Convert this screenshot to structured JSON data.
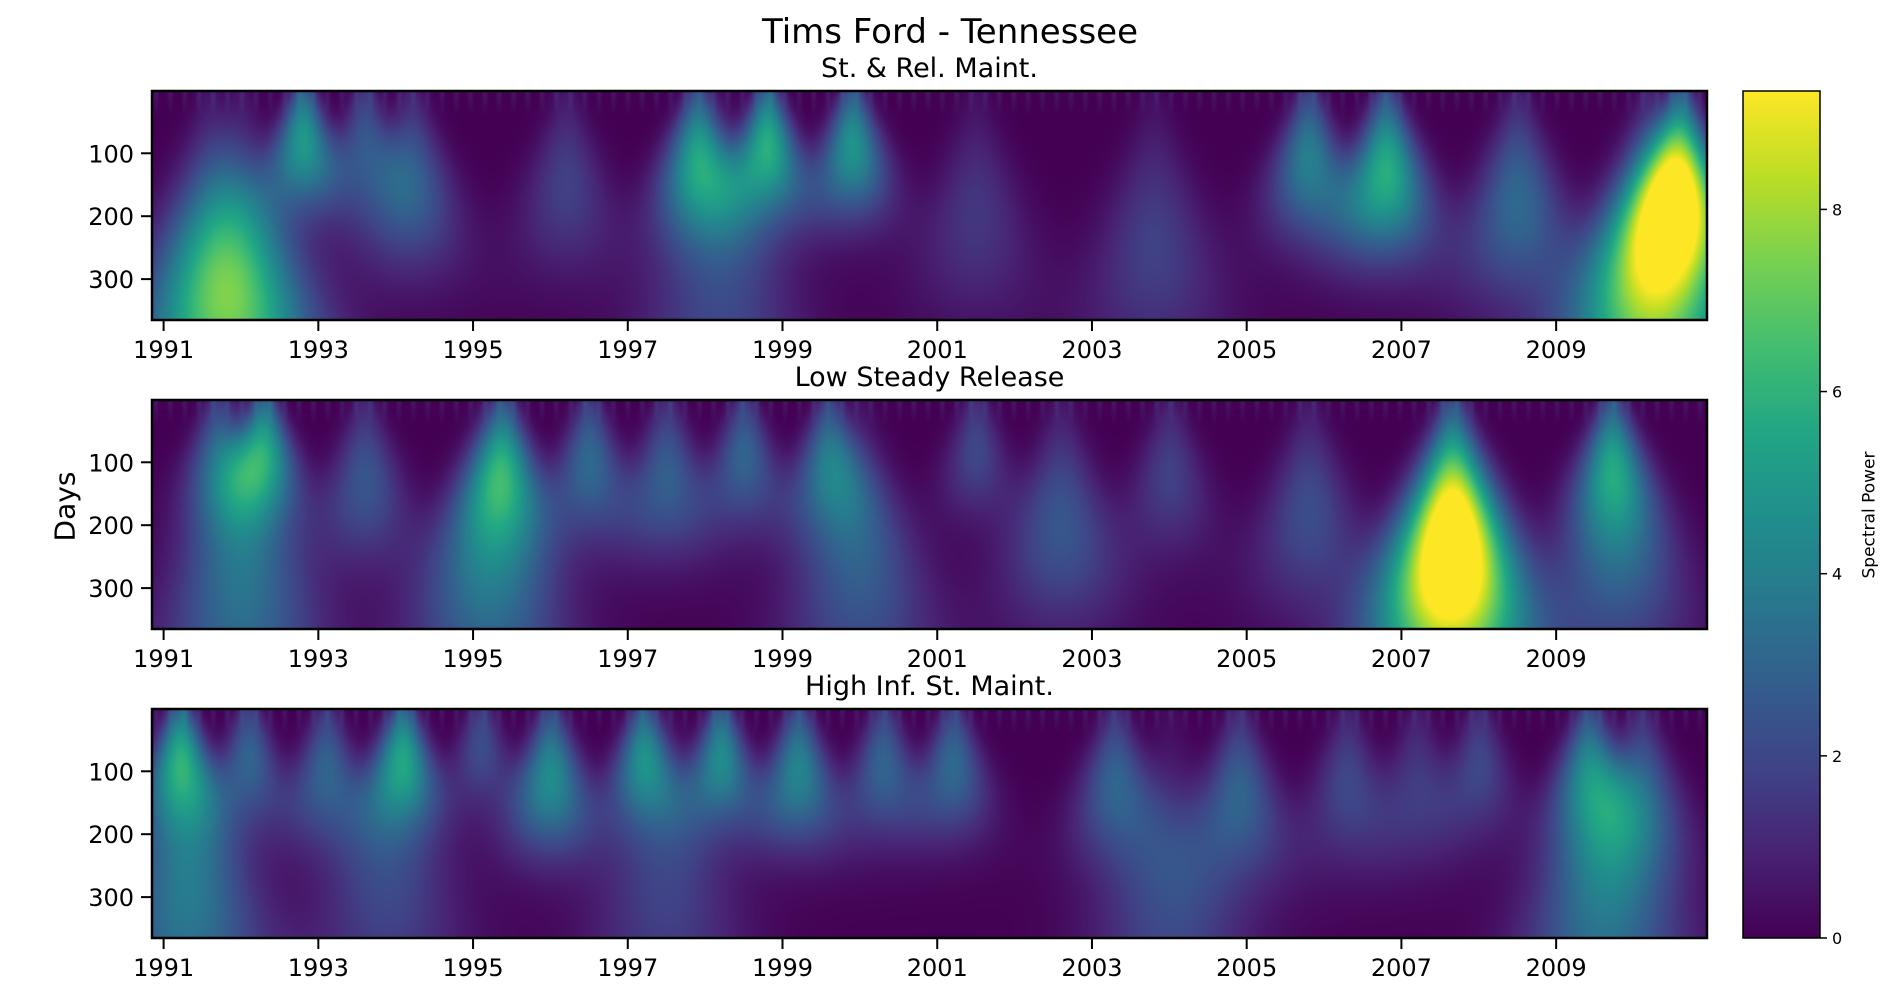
{
  "chart_data": [
    {
      "type": "heatmap",
      "title": "St. & Rel. Maint.",
      "ylabel": "",
      "xlim": [
        1990.85,
        2010.95
      ],
      "ylim": [
        365,
        1
      ],
      "x_ticks": [
        "1991",
        "1993",
        "1995",
        "1997",
        "1999",
        "2001",
        "2003",
        "2005",
        "2007",
        "2009"
      ],
      "y_ticks": [
        "100",
        "200",
        "300"
      ],
      "blobs": [
        {
          "x": 1991.6,
          "peak_day": 300,
          "power": 3.8
        },
        {
          "x": 1992.0,
          "peak_day": 340,
          "power": 4.2
        },
        {
          "x": 1992.8,
          "peak_day": 80,
          "power": 5.0
        },
        {
          "x": 1993.6,
          "peak_day": 80,
          "power": 2.5
        },
        {
          "x": 1994.2,
          "peak_day": 150,
          "power": 2.8
        },
        {
          "x": 1996.2,
          "peak_day": 150,
          "power": 1.8
        },
        {
          "x": 1997.9,
          "peak_day": 110,
          "power": 5.2
        },
        {
          "x": 1998.2,
          "peak_day": 330,
          "power": 2.0
        },
        {
          "x": 1998.8,
          "peak_day": 90,
          "power": 5.8
        },
        {
          "x": 1999.9,
          "peak_day": 90,
          "power": 4.8
        },
        {
          "x": 2001.5,
          "peak_day": 200,
          "power": 1.5
        },
        {
          "x": 2003.8,
          "peak_day": 250,
          "power": 1.8
        },
        {
          "x": 2005.8,
          "peak_day": 110,
          "power": 4.0
        },
        {
          "x": 2006.8,
          "peak_day": 130,
          "power": 5.8
        },
        {
          "x": 2008.5,
          "peak_day": 180,
          "power": 3.2
        },
        {
          "x": 2010.2,
          "peak_day": 330,
          "power": 7.0
        },
        {
          "x": 2010.6,
          "peak_day": 160,
          "power": 9.2
        }
      ]
    },
    {
      "type": "heatmap",
      "title": "Low Steady Release",
      "ylabel": "Days",
      "xlim": [
        1990.85,
        2010.95
      ],
      "ylim": [
        365,
        1
      ],
      "x_ticks": [
        "1991",
        "1993",
        "1995",
        "1997",
        "1999",
        "2001",
        "2003",
        "2005",
        "2007",
        "2009"
      ],
      "y_ticks": [
        "100",
        "200",
        "300"
      ],
      "blobs": [
        {
          "x": 1991.7,
          "peak_day": 90,
          "power": 3.0
        },
        {
          "x": 1992.0,
          "peak_day": 300,
          "power": 3.5
        },
        {
          "x": 1992.3,
          "peak_day": 80,
          "power": 5.2
        },
        {
          "x": 1993.6,
          "peak_day": 130,
          "power": 2.5
        },
        {
          "x": 1995.4,
          "peak_day": 110,
          "power": 4.8
        },
        {
          "x": 1995.2,
          "peak_day": 280,
          "power": 3.6
        },
        {
          "x": 1996.5,
          "peak_day": 100,
          "power": 3.2
        },
        {
          "x": 1997.5,
          "peak_day": 120,
          "power": 2.8
        },
        {
          "x": 1998.5,
          "peak_day": 90,
          "power": 3.0
        },
        {
          "x": 1999.6,
          "peak_day": 100,
          "power": 3.8
        },
        {
          "x": 2000.0,
          "peak_day": 280,
          "power": 2.6
        },
        {
          "x": 2001.5,
          "peak_day": 80,
          "power": 2.0
        },
        {
          "x": 2002.6,
          "peak_day": 200,
          "power": 2.5
        },
        {
          "x": 2004.0,
          "peak_day": 120,
          "power": 1.8
        },
        {
          "x": 2005.8,
          "peak_day": 180,
          "power": 2.2
        },
        {
          "x": 2007.6,
          "peak_day": 300,
          "power": 7.0
        },
        {
          "x": 2007.7,
          "peak_day": 200,
          "power": 6.0
        },
        {
          "x": 2009.7,
          "peak_day": 100,
          "power": 4.0
        },
        {
          "x": 2009.8,
          "peak_day": 240,
          "power": 3.0
        }
      ]
    },
    {
      "type": "heatmap",
      "title": "High Inf. St. Maint.",
      "ylabel": "",
      "xlim": [
        1990.85,
        2010.95
      ],
      "ylim": [
        365,
        1
      ],
      "x_ticks": [
        "1991",
        "1993",
        "1995",
        "1997",
        "1999",
        "2001",
        "2003",
        "2005",
        "2007",
        "2009"
      ],
      "y_ticks": [
        "100",
        "200",
        "300"
      ],
      "blobs": [
        {
          "x": 1991.2,
          "peak_day": 80,
          "power": 4.8
        },
        {
          "x": 1991.3,
          "peak_day": 300,
          "power": 3.8
        },
        {
          "x": 1992.1,
          "peak_day": 80,
          "power": 3.0
        },
        {
          "x": 1993.1,
          "peak_day": 100,
          "power": 3.0
        },
        {
          "x": 1994.1,
          "peak_day": 80,
          "power": 5.0
        },
        {
          "x": 1993.9,
          "peak_day": 280,
          "power": 2.0
        },
        {
          "x": 1995.1,
          "peak_day": 60,
          "power": 2.2
        },
        {
          "x": 1996.0,
          "peak_day": 110,
          "power": 4.5
        },
        {
          "x": 1997.2,
          "peak_day": 80,
          "power": 4.5
        },
        {
          "x": 1997.5,
          "peak_day": 300,
          "power": 1.8
        },
        {
          "x": 1998.2,
          "peak_day": 80,
          "power": 4.5
        },
        {
          "x": 1999.2,
          "peak_day": 100,
          "power": 4.2
        },
        {
          "x": 2000.3,
          "peak_day": 90,
          "power": 3.0
        },
        {
          "x": 2001.2,
          "peak_day": 90,
          "power": 3.2
        },
        {
          "x": 2003.3,
          "peak_day": 120,
          "power": 3.0
        },
        {
          "x": 2004.0,
          "peak_day": 320,
          "power": 2.0
        },
        {
          "x": 2004.9,
          "peak_day": 140,
          "power": 3.0
        },
        {
          "x": 2006.3,
          "peak_day": 120,
          "power": 2.0
        },
        {
          "x": 2007.2,
          "peak_day": 120,
          "power": 1.6
        },
        {
          "x": 2008.0,
          "peak_day": 90,
          "power": 2.0
        },
        {
          "x": 2009.6,
          "peak_day": 320,
          "power": 3.5
        },
        {
          "x": 2009.4,
          "peak_day": 100,
          "power": 3.8
        },
        {
          "x": 2010.1,
          "peak_day": 140,
          "power": 3.0
        }
      ]
    }
  ],
  "figure": {
    "title": "Tims Ford - Tennessee",
    "ylabel": "Days"
  },
  "colorbar": {
    "label": "Spectral Power",
    "colormap": "viridis",
    "min": 0,
    "max": 9.3,
    "ticks": [
      "0",
      "2",
      "4",
      "6",
      "8"
    ]
  }
}
